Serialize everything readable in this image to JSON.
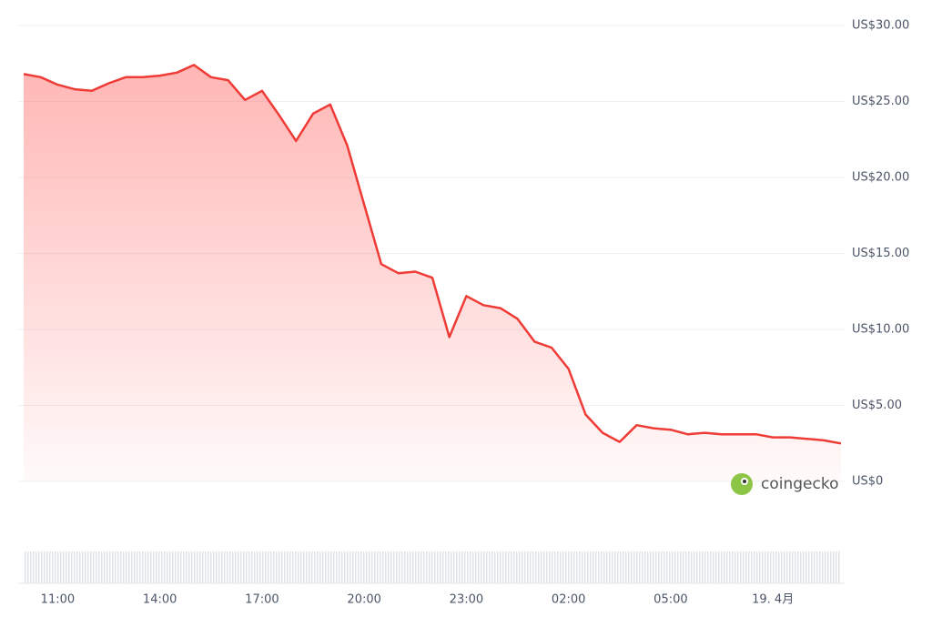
{
  "chart_data": {
    "type": "line",
    "x": [
      "10:00",
      "10:30",
      "11:00",
      "11:30",
      "12:00",
      "12:30",
      "13:00",
      "13:30",
      "14:00",
      "14:30",
      "15:00",
      "15:30",
      "16:00",
      "16:30",
      "17:00",
      "17:30",
      "18:00",
      "18:30",
      "19:00",
      "19:30",
      "20:00",
      "20:30",
      "21:00",
      "21:30",
      "22:00",
      "22:30",
      "23:00",
      "23:30",
      "00:00",
      "00:30",
      "01:00",
      "01:30",
      "02:00",
      "02:30",
      "03:00",
      "03:30",
      "04:00",
      "04:30",
      "05:00",
      "05:30",
      "06:00",
      "06:30",
      "07:00",
      "07:30",
      "08:00",
      "08:30",
      "09:00",
      "09:30",
      "10:00"
    ],
    "series": [
      {
        "color": "#ef3b36",
        "values": [
          26.8,
          26.6,
          26.1,
          25.8,
          25.7,
          26.2,
          26.6,
          26.6,
          26.7,
          26.9,
          27.4,
          26.6,
          26.4,
          25.1,
          25.7,
          24.1,
          22.4,
          24.2,
          24.8,
          22.1,
          18.2,
          14.3,
          13.7,
          13.8,
          13.4,
          9.5,
          12.2,
          11.6,
          11.4,
          10.7,
          9.2,
          8.8,
          7.4,
          4.4,
          3.2,
          2.6,
          3.7,
          3.5,
          3.4,
          3.1,
          3.2,
          3.1,
          3.1,
          3.1,
          2.9,
          2.9,
          2.8,
          2.7,
          2.5
        ]
      }
    ],
    "ylim": [
      0,
      30
    ],
    "yticks": [
      {
        "value": 0,
        "label": "US$0"
      },
      {
        "value": 5,
        "label": "US$5.00"
      },
      {
        "value": 10,
        "label": "US$10.00"
      },
      {
        "value": 15,
        "label": "US$15.00"
      },
      {
        "value": 20,
        "label": "US$20.00"
      },
      {
        "value": 25,
        "label": "US$25.00"
      },
      {
        "value": 30,
        "label": "US$30.00"
      }
    ],
    "xticks": [
      {
        "value": "11:00",
        "label": "11:00"
      },
      {
        "value": "14:00",
        "label": "14:00"
      },
      {
        "value": "17:00",
        "label": "17:00"
      },
      {
        "value": "20:00",
        "label": "20:00"
      },
      {
        "value": "23:00",
        "label": "23:00"
      },
      {
        "value": "02:00",
        "label": "02:00"
      },
      {
        "value": "05:00",
        "label": "05:00"
      },
      {
        "value": "08:00",
        "label": "19. 4月"
      }
    ],
    "grid": true,
    "watermark": "coingecko"
  }
}
